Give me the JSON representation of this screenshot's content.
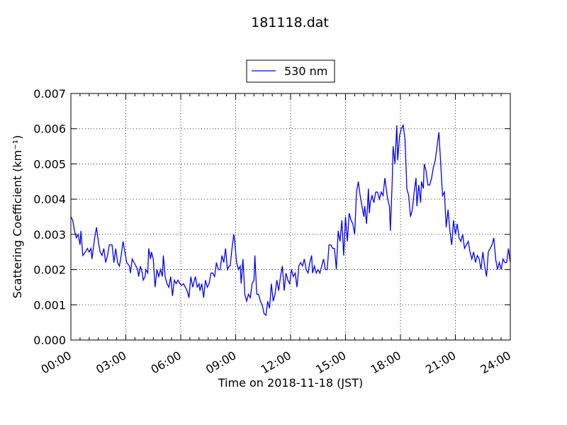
{
  "chart_data": {
    "type": "line",
    "title": "181118.dat",
    "xlabel": "Time on 2018-11-18 (JST)",
    "ylabel": "Scattering Coefficient (km⁻¹)",
    "xlim": [
      "00:00",
      "24:00"
    ],
    "ylim": [
      0,
      0.007
    ],
    "x_ticks": [
      "00:00",
      "03:00",
      "06:00",
      "09:00",
      "12:00",
      "15:00",
      "18:00",
      "21:00",
      "24:00"
    ],
    "y_ticks": [
      "0.000",
      "0.001",
      "0.002",
      "0.003",
      "0.004",
      "0.005",
      "0.006",
      "0.007"
    ],
    "grid": true,
    "legend_position": "top-center",
    "line_color": "#0000ff",
    "series": [
      {
        "name": "530 nm",
        "x_unit": "hours since 00:00",
        "points": [
          [
            0.0,
            0.0035
          ],
          [
            0.1,
            0.0034
          ],
          [
            0.2,
            0.0031
          ],
          [
            0.3,
            0.0029
          ],
          [
            0.4,
            0.003
          ],
          [
            0.5,
            0.0027
          ],
          [
            0.55,
            0.0031
          ],
          [
            0.65,
            0.0024
          ],
          [
            0.8,
            0.0025
          ],
          [
            0.9,
            0.0026
          ],
          [
            1.0,
            0.0025
          ],
          [
            1.1,
            0.0026
          ],
          [
            1.15,
            0.0023
          ],
          [
            1.3,
            0.0029
          ],
          [
            1.4,
            0.0032
          ],
          [
            1.5,
            0.0028
          ],
          [
            1.6,
            0.0025
          ],
          [
            1.7,
            0.0024
          ],
          [
            1.8,
            0.0026
          ],
          [
            1.9,
            0.0022
          ],
          [
            2.0,
            0.0024
          ],
          [
            2.1,
            0.0027
          ],
          [
            2.25,
            0.0027
          ],
          [
            2.35,
            0.0022
          ],
          [
            2.45,
            0.0026
          ],
          [
            2.55,
            0.0022
          ],
          [
            2.65,
            0.0021
          ],
          [
            2.75,
            0.0024
          ],
          [
            2.85,
            0.0028
          ],
          [
            2.95,
            0.0025
          ],
          [
            3.05,
            0.0022
          ],
          [
            3.2,
            0.0021
          ],
          [
            3.25,
            0.0019
          ],
          [
            3.35,
            0.0023
          ],
          [
            3.45,
            0.0022
          ],
          [
            3.55,
            0.0021
          ],
          [
            3.65,
            0.002
          ],
          [
            3.7,
            0.0018
          ],
          [
            3.8,
            0.0021
          ],
          [
            3.9,
            0.0019
          ],
          [
            3.95,
            0.0017
          ],
          [
            4.05,
            0.0018
          ],
          [
            4.1,
            0.002
          ],
          [
            4.2,
            0.0019
          ],
          [
            4.25,
            0.0026
          ],
          [
            4.35,
            0.0023
          ],
          [
            4.4,
            0.0025
          ],
          [
            4.5,
            0.0023
          ],
          [
            4.6,
            0.0015
          ],
          [
            4.7,
            0.002
          ],
          [
            4.8,
            0.0018
          ],
          [
            4.9,
            0.002
          ],
          [
            5.0,
            0.0018
          ],
          [
            5.05,
            0.0024
          ],
          [
            5.15,
            0.0018
          ],
          [
            5.25,
            0.0016
          ],
          [
            5.35,
            0.0015
          ],
          [
            5.45,
            0.0018
          ],
          [
            5.55,
            0.00125
          ],
          [
            5.65,
            0.0017
          ],
          [
            5.75,
            0.0016
          ],
          [
            5.85,
            0.0017
          ],
          [
            5.95,
            0.0016
          ],
          [
            6.05,
            0.00155
          ],
          [
            6.15,
            0.0016
          ],
          [
            6.25,
            0.0015
          ],
          [
            6.35,
            0.0014
          ],
          [
            6.45,
            0.0012
          ],
          [
            6.55,
            0.0018
          ],
          [
            6.65,
            0.0015
          ],
          [
            6.75,
            0.0017
          ],
          [
            6.8,
            0.0018
          ],
          [
            6.9,
            0.0015
          ],
          [
            7.0,
            0.0016
          ],
          [
            7.05,
            0.0014
          ],
          [
            7.15,
            0.0016
          ],
          [
            7.25,
            0.0012
          ],
          [
            7.35,
            0.0017
          ],
          [
            7.45,
            0.0015
          ],
          [
            7.55,
            0.0016
          ],
          [
            7.65,
            0.0019
          ],
          [
            7.75,
            0.0019
          ],
          [
            7.85,
            0.0018
          ],
          [
            7.95,
            0.0022
          ],
          [
            8.05,
            0.002
          ],
          [
            8.15,
            0.002
          ],
          [
            8.25,
            0.0024
          ],
          [
            8.35,
            0.0022
          ],
          [
            8.45,
            0.0026
          ],
          [
            8.55,
            0.002
          ],
          [
            8.65,
            0.0021
          ],
          [
            8.7,
            0.0021
          ],
          [
            8.8,
            0.0026
          ],
          [
            8.9,
            0.003
          ],
          [
            8.95,
            0.0028
          ],
          [
            9.05,
            0.0022
          ],
          [
            9.15,
            0.002
          ],
          [
            9.25,
            0.0021
          ],
          [
            9.3,
            0.0016
          ],
          [
            9.4,
            0.0023
          ],
          [
            9.5,
            0.0013
          ],
          [
            9.6,
            0.0011
          ],
          [
            9.7,
            0.0013
          ],
          [
            9.8,
            0.0012
          ],
          [
            9.9,
            0.0016
          ],
          [
            10.0,
            0.0017
          ],
          [
            10.05,
            0.0024
          ],
          [
            10.15,
            0.0013
          ],
          [
            10.25,
            0.0013
          ],
          [
            10.35,
            0.0011
          ],
          [
            10.45,
            0.001
          ],
          [
            10.55,
            0.00075
          ],
          [
            10.65,
            0.0007
          ],
          [
            10.75,
            0.0011
          ],
          [
            10.85,
            0.0009
          ],
          [
            10.95,
            0.0016
          ],
          [
            11.05,
            0.0011
          ],
          [
            11.15,
            0.0013
          ],
          [
            11.25,
            0.0017
          ],
          [
            11.35,
            0.0014
          ],
          [
            11.45,
            0.0018
          ],
          [
            11.55,
            0.0021
          ],
          [
            11.65,
            0.0014
          ],
          [
            11.75,
            0.0019
          ],
          [
            11.85,
            0.0017
          ],
          [
            11.95,
            0.0016
          ],
          [
            12.05,
            0.002
          ],
          [
            12.15,
            0.0018
          ],
          [
            12.25,
            0.0019
          ],
          [
            12.35,
            0.0015
          ],
          [
            12.45,
            0.0021
          ],
          [
            12.55,
            0.0022
          ],
          [
            12.65,
            0.0021
          ],
          [
            12.75,
            0.0023
          ],
          [
            12.85,
            0.002
          ],
          [
            12.95,
            0.0019
          ],
          [
            13.05,
            0.0022
          ],
          [
            13.15,
            0.0024
          ],
          [
            13.2,
            0.0019
          ],
          [
            13.3,
            0.0021
          ],
          [
            13.4,
            0.0019
          ],
          [
            13.5,
            0.002
          ],
          [
            13.6,
            0.0019
          ],
          [
            13.7,
            0.0021
          ],
          [
            13.8,
            0.0023
          ],
          [
            13.9,
            0.002
          ],
          [
            14.0,
            0.002
          ],
          [
            14.1,
            0.0027
          ],
          [
            14.2,
            0.0027
          ],
          [
            14.3,
            0.0026
          ],
          [
            14.4,
            0.0026
          ],
          [
            14.5,
            0.002
          ],
          [
            14.6,
            0.0031
          ],
          [
            14.7,
            0.0028
          ],
          [
            14.8,
            0.0034
          ],
          [
            14.9,
            0.0024
          ],
          [
            15.0,
            0.0035
          ],
          [
            15.1,
            0.0028
          ],
          [
            15.2,
            0.0036
          ],
          [
            15.3,
            0.0034
          ],
          [
            15.4,
            0.0033
          ],
          [
            15.5,
            0.003
          ],
          [
            15.6,
            0.0042
          ],
          [
            15.7,
            0.0045
          ],
          [
            15.8,
            0.0041
          ],
          [
            15.9,
            0.0038
          ],
          [
            16.0,
            0.0035
          ],
          [
            16.05,
            0.0038
          ],
          [
            16.15,
            0.0033
          ],
          [
            16.25,
            0.0043
          ],
          [
            16.3,
            0.0036
          ],
          [
            16.35,
            0.0039
          ],
          [
            16.45,
            0.0041
          ],
          [
            16.55,
            0.0039
          ],
          [
            16.65,
            0.0042
          ],
          [
            16.75,
            0.0042
          ],
          [
            16.85,
            0.004
          ],
          [
            16.95,
            0.0042
          ],
          [
            17.05,
            0.0041
          ],
          [
            17.15,
            0.0046
          ],
          [
            17.2,
            0.0044
          ],
          [
            17.3,
            0.004
          ],
          [
            17.4,
            0.0038
          ],
          [
            17.45,
            0.0031
          ],
          [
            17.55,
            0.0045
          ],
          [
            17.6,
            0.0055
          ],
          [
            17.7,
            0.005
          ],
          [
            17.8,
            0.0061
          ],
          [
            17.85,
            0.0051
          ],
          [
            17.95,
            0.0058
          ],
          [
            18.05,
            0.006
          ],
          [
            18.15,
            0.0061
          ],
          [
            18.25,
            0.0057
          ],
          [
            18.35,
            0.0043
          ],
          [
            18.45,
            0.0041
          ],
          [
            18.55,
            0.0035
          ],
          [
            18.65,
            0.0037
          ],
          [
            18.75,
            0.0042
          ],
          [
            18.85,
            0.0046
          ],
          [
            18.9,
            0.0038
          ],
          [
            19.0,
            0.0044
          ],
          [
            19.1,
            0.0039
          ],
          [
            19.15,
            0.0045
          ],
          [
            19.25,
            0.0043
          ],
          [
            19.3,
            0.005
          ],
          [
            19.4,
            0.0048
          ],
          [
            19.5,
            0.0044
          ],
          [
            19.6,
            0.0044
          ],
          [
            19.7,
            0.0046
          ],
          [
            19.8,
            0.0049
          ],
          [
            19.9,
            0.0051
          ],
          [
            20.0,
            0.0055
          ],
          [
            20.1,
            0.0059
          ],
          [
            20.2,
            0.005
          ],
          [
            20.3,
            0.0041
          ],
          [
            20.4,
            0.0042
          ],
          [
            20.5,
            0.0032
          ],
          [
            20.6,
            0.0037
          ],
          [
            20.7,
            0.0031
          ],
          [
            20.8,
            0.0027
          ],
          [
            20.9,
            0.0034
          ],
          [
            21.0,
            0.003
          ],
          [
            21.1,
            0.0033
          ],
          [
            21.2,
            0.0029
          ],
          [
            21.3,
            0.0028
          ],
          [
            21.4,
            0.003
          ],
          [
            21.5,
            0.0026
          ],
          [
            21.6,
            0.0027
          ],
          [
            21.7,
            0.0028
          ],
          [
            21.8,
            0.0025
          ],
          [
            21.9,
            0.0023
          ],
          [
            22.0,
            0.0025
          ],
          [
            22.1,
            0.0022
          ],
          [
            22.2,
            0.0024
          ],
          [
            22.3,
            0.0023
          ],
          [
            22.4,
            0.002
          ],
          [
            22.5,
            0.0025
          ],
          [
            22.6,
            0.0021
          ],
          [
            22.7,
            0.0018
          ],
          [
            22.8,
            0.0025
          ],
          [
            22.9,
            0.0026
          ],
          [
            23.0,
            0.0027
          ],
          [
            23.1,
            0.0029
          ],
          [
            23.2,
            0.0023
          ],
          [
            23.3,
            0.002
          ],
          [
            23.4,
            0.0022
          ],
          [
            23.5,
            0.002
          ],
          [
            23.6,
            0.0023
          ],
          [
            23.7,
            0.0022
          ],
          [
            23.8,
            0.0022
          ],
          [
            23.9,
            0.0026
          ],
          [
            24.0,
            0.0022
          ]
        ]
      }
    ]
  }
}
